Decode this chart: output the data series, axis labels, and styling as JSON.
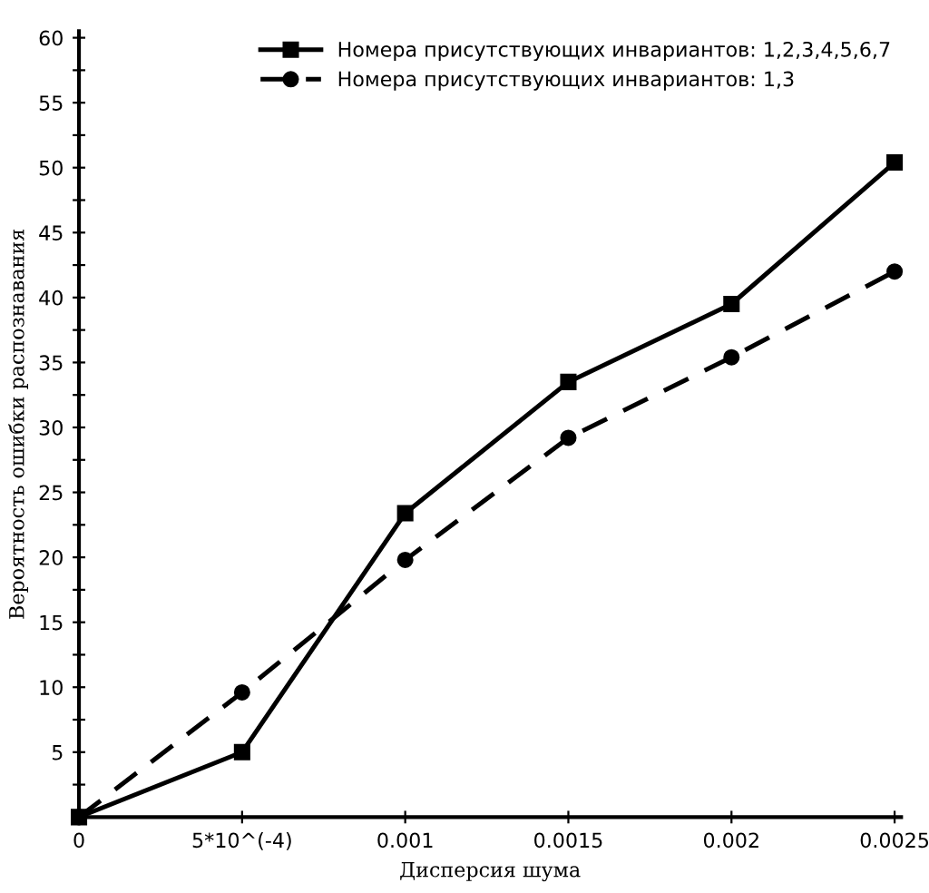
{
  "chart_data": {
    "type": "line",
    "xlabel": "Дисперсия шума",
    "ylabel": "Вероятность ошибки распознавания",
    "x": [
      0,
      0.0005,
      0.001,
      0.0015,
      0.002,
      0.0025
    ],
    "series": [
      {
        "name": "Номера присутствующих инвариантов: 1,2,3,4,5,6,7",
        "color": "#000000",
        "values": [
          0,
          5.0,
          23.4,
          33.5,
          39.5,
          50.4
        ],
        "marker": "square",
        "line_style": "solid"
      },
      {
        "name": "Номера присутствующих инвариантов: 1,3",
        "color": "#000000",
        "values": [
          0,
          9.6,
          19.8,
          29.2,
          35.4,
          42.0
        ],
        "marker": "circle",
        "line_style": "dashed"
      }
    ],
    "xlim": [
      0,
      0.00252
    ],
    "ylim": [
      0,
      60.5
    ],
    "xticks": [
      0,
      {
        "value": 0.0005,
        "label": "5*10^(-4)"
      },
      0.001,
      0.0015,
      0.002,
      0.0025
    ],
    "yticks": [
      {
        "value": 2.5,
        "label": null
      },
      5,
      {
        "value": 7.5,
        "label": null
      },
      10,
      {
        "value": 12.5,
        "label": null
      },
      15,
      {
        "value": 17.5,
        "label": null
      },
      20,
      {
        "value": 22.5,
        "label": null
      },
      25,
      {
        "value": 27.5,
        "label": null
      },
      30,
      {
        "value": 32.5,
        "label": null
      },
      35,
      {
        "value": 37.5,
        "label": null
      },
      40,
      {
        "value": 42.5,
        "label": null
      },
      45,
      {
        "value": 47.5,
        "label": null
      },
      50,
      {
        "value": 52.5,
        "label": null
      },
      55,
      {
        "value": 57.5,
        "label": null
      },
      60
    ],
    "grid": false,
    "legend": "top right"
  }
}
